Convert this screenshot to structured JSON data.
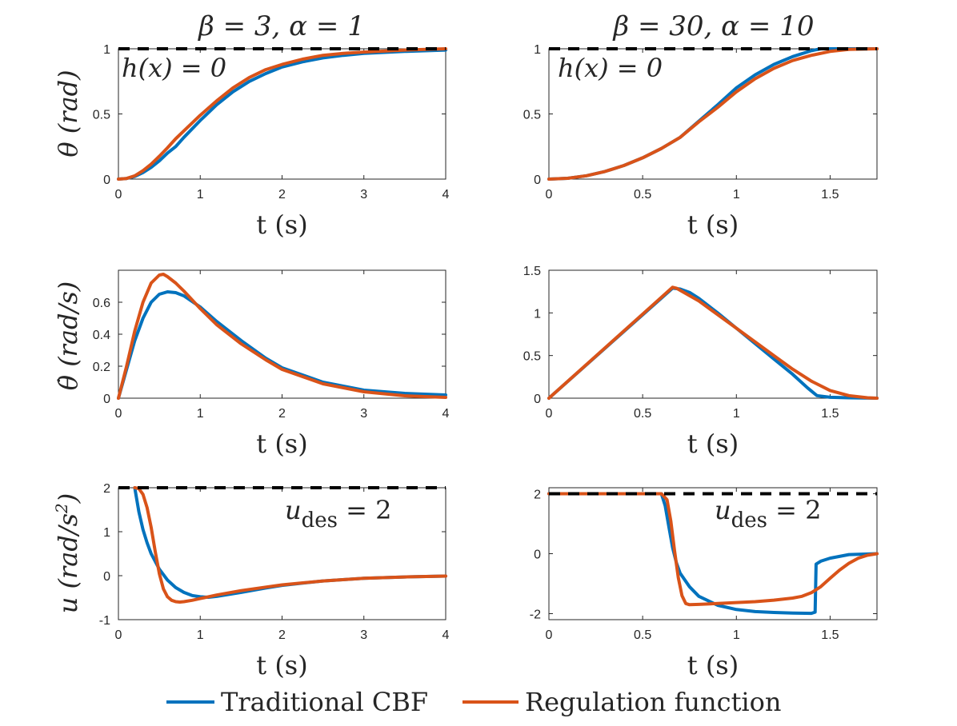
{
  "colors": {
    "traditional": "#0072BD",
    "regulation": "#D95319",
    "bound": "#000000",
    "axis": "#262626"
  },
  "columns": {
    "left": {
      "title_parts": [
        "β = 3, ",
        "α = 1"
      ]
    },
    "right": {
      "title_parts": [
        "β = 30, ",
        "α = 10"
      ]
    }
  },
  "rows": {
    "theta": {
      "ylabel": "θ (rad)"
    },
    "thetadot": {
      "ylabel": "θ̇ (rad/s)"
    },
    "u": {
      "ylabel_main": "u (rad/s",
      "ylabel_sup": "2",
      "ylabel_close": ")"
    }
  },
  "xlabel": "t (s)",
  "annotations": {
    "h_main": "h(x) = 0",
    "u_base": "u",
    "u_sub": "des",
    "u_value": " = 2"
  },
  "legend": {
    "traditional": "Traditional CBF",
    "regulation": "Regulation function"
  },
  "chart_data": [
    {
      "id": "theta-left",
      "type": "line",
      "xlim": [
        0,
        4
      ],
      "ylim": [
        0,
        1
      ],
      "xticks": [
        "0",
        "1",
        "2",
        "3",
        "4"
      ],
      "xtick_values": [
        0,
        1,
        2,
        3,
        4
      ],
      "yticks": [
        "0",
        "0.5",
        "1"
      ],
      "ytick_values": [
        0,
        0.5,
        1
      ],
      "xlabel": "t (s)",
      "ylabel": "θ (rad)",
      "title": "β = 3, α = 1",
      "reference_line": {
        "y": 1,
        "label": "h(x) = 0"
      },
      "series": [
        {
          "name": "Traditional CBF",
          "x": [
            0,
            0.1,
            0.2,
            0.3,
            0.4,
            0.5,
            0.6,
            0.7,
            0.8,
            1.0,
            1.2,
            1.4,
            1.6,
            1.8,
            2.0,
            2.25,
            2.5,
            2.75,
            3.0,
            3.5,
            4.0
          ],
          "y": [
            0,
            0.005,
            0.02,
            0.05,
            0.09,
            0.14,
            0.2,
            0.25,
            0.32,
            0.45,
            0.57,
            0.67,
            0.75,
            0.81,
            0.86,
            0.9,
            0.93,
            0.95,
            0.965,
            0.98,
            0.99
          ]
        },
        {
          "name": "Regulation function",
          "x": [
            0,
            0.1,
            0.2,
            0.3,
            0.4,
            0.5,
            0.6,
            0.7,
            0.8,
            1.0,
            1.2,
            1.4,
            1.6,
            1.8,
            2.0,
            2.25,
            2.5,
            2.75,
            3.0,
            3.5,
            4.0
          ],
          "y": [
            0,
            0.005,
            0.025,
            0.065,
            0.115,
            0.175,
            0.24,
            0.31,
            0.37,
            0.49,
            0.6,
            0.7,
            0.78,
            0.84,
            0.88,
            0.92,
            0.95,
            0.965,
            0.975,
            0.99,
            1.0
          ]
        }
      ]
    },
    {
      "id": "theta-right",
      "type": "line",
      "xlim": [
        0,
        1.75
      ],
      "ylim": [
        0,
        1
      ],
      "xticks": [
        "0",
        "0.5",
        "1",
        "1.5"
      ],
      "xtick_values": [
        0,
        0.5,
        1,
        1.5
      ],
      "yticks": [
        "0",
        "0.5",
        "1"
      ],
      "ytick_values": [
        0,
        0.5,
        1
      ],
      "xlabel": "t (s)",
      "ylabel": "θ (rad)",
      "title": "β = 30, α = 10",
      "reference_line": {
        "y": 1,
        "label": "h(x) = 0"
      },
      "series": [
        {
          "name": "Traditional CBF",
          "x": [
            0,
            0.1,
            0.2,
            0.3,
            0.4,
            0.5,
            0.6,
            0.7,
            0.8,
            0.9,
            1.0,
            1.1,
            1.2,
            1.3,
            1.4,
            1.45,
            1.5,
            1.6,
            1.75
          ],
          "y": [
            0,
            0.006,
            0.026,
            0.059,
            0.104,
            0.163,
            0.235,
            0.32,
            0.445,
            0.57,
            0.7,
            0.8,
            0.88,
            0.94,
            0.985,
            1.0,
            1.0,
            1.0,
            1.0
          ]
        },
        {
          "name": "Regulation function",
          "x": [
            0,
            0.1,
            0.2,
            0.3,
            0.4,
            0.5,
            0.6,
            0.7,
            0.8,
            0.9,
            1.0,
            1.1,
            1.2,
            1.3,
            1.4,
            1.5,
            1.6,
            1.75
          ],
          "y": [
            0,
            0.006,
            0.026,
            0.059,
            0.104,
            0.163,
            0.235,
            0.32,
            0.44,
            0.55,
            0.67,
            0.77,
            0.85,
            0.91,
            0.95,
            0.98,
            0.995,
            1.0
          ]
        }
      ]
    },
    {
      "id": "thetadot-left",
      "type": "line",
      "xlim": [
        0,
        4
      ],
      "ylim": [
        0,
        0.8
      ],
      "xticks": [
        "0",
        "1",
        "2",
        "3",
        "4"
      ],
      "xtick_values": [
        0,
        1,
        2,
        3,
        4
      ],
      "yticks": [
        "0",
        "0.2",
        "0.4",
        "0.6"
      ],
      "ytick_values": [
        0,
        0.2,
        0.4,
        0.6
      ],
      "xlabel": "t (s)",
      "ylabel": "θ̇ (rad/s)",
      "series": [
        {
          "name": "Traditional CBF",
          "x": [
            0,
            0.1,
            0.2,
            0.3,
            0.4,
            0.5,
            0.6,
            0.7,
            0.8,
            1.0,
            1.2,
            1.5,
            1.8,
            2.0,
            2.5,
            3.0,
            3.5,
            4.0
          ],
          "y": [
            0,
            0.18,
            0.36,
            0.5,
            0.6,
            0.65,
            0.665,
            0.66,
            0.64,
            0.57,
            0.48,
            0.36,
            0.25,
            0.19,
            0.1,
            0.05,
            0.03,
            0.02
          ]
        },
        {
          "name": "Regulation function",
          "x": [
            0,
            0.1,
            0.2,
            0.3,
            0.4,
            0.5,
            0.55,
            0.6,
            0.7,
            0.8,
            1.0,
            1.2,
            1.5,
            1.8,
            2.0,
            2.5,
            3.0,
            3.5,
            4.0
          ],
          "y": [
            0,
            0.2,
            0.42,
            0.6,
            0.72,
            0.77,
            0.775,
            0.76,
            0.72,
            0.67,
            0.56,
            0.46,
            0.34,
            0.24,
            0.18,
            0.09,
            0.04,
            0.015,
            0.005
          ]
        }
      ]
    },
    {
      "id": "thetadot-right",
      "type": "line",
      "xlim": [
        0,
        1.75
      ],
      "ylim": [
        0,
        1.5
      ],
      "xticks": [
        "0",
        "0.5",
        "1",
        "1.5"
      ],
      "xtick_values": [
        0,
        0.5,
        1,
        1.5
      ],
      "yticks": [
        "0",
        "0.5",
        "1",
        "1.5"
      ],
      "ytick_values": [
        0,
        0.5,
        1,
        1.5
      ],
      "xlabel": "t (s)",
      "ylabel": "θ̇ (rad/s)",
      "series": [
        {
          "name": "Traditional CBF",
          "x": [
            0,
            0.66,
            0.7,
            0.75,
            0.8,
            0.9,
            1.0,
            1.1,
            1.2,
            1.3,
            1.38,
            1.43,
            1.5,
            1.6,
            1.75
          ],
          "y": [
            0,
            1.29,
            1.28,
            1.24,
            1.17,
            1.0,
            0.82,
            0.64,
            0.46,
            0.28,
            0.12,
            0.03,
            0.01,
            0.005,
            0
          ]
        },
        {
          "name": "Regulation function",
          "x": [
            0,
            0.66,
            0.68,
            0.72,
            0.8,
            0.9,
            1.0,
            1.1,
            1.2,
            1.3,
            1.4,
            1.5,
            1.6,
            1.7,
            1.75
          ],
          "y": [
            0,
            1.3,
            1.29,
            1.24,
            1.14,
            0.98,
            0.82,
            0.66,
            0.5,
            0.34,
            0.2,
            0.09,
            0.03,
            0.005,
            0
          ]
        }
      ]
    },
    {
      "id": "u-left",
      "type": "line",
      "xlim": [
        0,
        4
      ],
      "ylim": [
        -1,
        2
      ],
      "xticks": [
        "0",
        "1",
        "2",
        "3",
        "4"
      ],
      "xtick_values": [
        0,
        1,
        2,
        3,
        4
      ],
      "yticks": [
        "-1",
        "0",
        "1",
        "2"
      ],
      "ytick_values": [
        -1,
        0,
        1,
        2
      ],
      "xlabel": "t (s)",
      "ylabel": "u (rad/s^2)",
      "reference_line": {
        "y": 2,
        "label": "u_des = 2"
      },
      "series": [
        {
          "name": "Traditional CBF",
          "x": [
            0.2,
            0.25,
            0.3,
            0.35,
            0.4,
            0.5,
            0.6,
            0.7,
            0.8,
            0.9,
            1.0,
            1.1,
            1.2,
            1.5,
            1.8,
            2.0,
            2.5,
            3.0,
            3.5,
            4.0
          ],
          "y": [
            2,
            1.45,
            1.05,
            0.75,
            0.5,
            0.15,
            -0.1,
            -0.27,
            -0.38,
            -0.45,
            -0.48,
            -0.49,
            -0.47,
            -0.38,
            -0.28,
            -0.22,
            -0.12,
            -0.06,
            -0.03,
            -0.01
          ]
        },
        {
          "name": "Regulation function",
          "x": [
            0.2,
            0.25,
            0.3,
            0.35,
            0.4,
            0.45,
            0.5,
            0.55,
            0.6,
            0.65,
            0.7,
            0.75,
            0.8,
            0.9,
            1.0,
            1.2,
            1.5,
            1.8,
            2.0,
            2.5,
            3.0,
            3.5,
            4.0
          ],
          "y": [
            2,
            1.98,
            1.85,
            1.55,
            1.1,
            0.55,
            0.05,
            -0.3,
            -0.48,
            -0.56,
            -0.59,
            -0.6,
            -0.59,
            -0.56,
            -0.52,
            -0.44,
            -0.34,
            -0.26,
            -0.21,
            -0.12,
            -0.06,
            -0.03,
            -0.01
          ]
        }
      ]
    },
    {
      "id": "u-right",
      "type": "line",
      "xlim": [
        0,
        1.75
      ],
      "ylim": [
        -2.2,
        2.2
      ],
      "xticks": [
        "0",
        "0.5",
        "1",
        "1.5"
      ],
      "xtick_values": [
        0,
        0.5,
        1,
        1.5
      ],
      "yticks": [
        "-2",
        "0",
        "2"
      ],
      "ytick_values": [
        -2,
        0,
        2
      ],
      "xlabel": "t (s)",
      "ylabel": "u (rad/s^2)",
      "reference_line": {
        "y": 2,
        "label": "u_des = 2"
      },
      "series": [
        {
          "name": "Traditional CBF",
          "x": [
            0,
            0.6,
            0.62,
            0.64,
            0.66,
            0.68,
            0.7,
            0.75,
            0.8,
            0.9,
            1.0,
            1.1,
            1.2,
            1.3,
            1.4,
            1.42,
            1.425,
            1.45,
            1.5,
            1.6,
            1.75
          ],
          "y": [
            2,
            2,
            1.6,
            0.9,
            0.2,
            -0.3,
            -0.65,
            -1.1,
            -1.42,
            -1.72,
            -1.86,
            -1.93,
            -1.96,
            -1.98,
            -1.99,
            -1.95,
            -0.35,
            -0.25,
            -0.15,
            -0.03,
            0
          ]
        },
        {
          "name": "Regulation function",
          "x": [
            0,
            0.6,
            0.63,
            0.65,
            0.67,
            0.69,
            0.71,
            0.73,
            0.75,
            0.8,
            0.9,
            1.0,
            1.1,
            1.2,
            1.3,
            1.35,
            1.4,
            1.45,
            1.5,
            1.55,
            1.6,
            1.65,
            1.7,
            1.75
          ],
          "y": [
            2,
            2,
            1.8,
            1.1,
            0.1,
            -0.8,
            -1.4,
            -1.66,
            -1.7,
            -1.69,
            -1.66,
            -1.63,
            -1.6,
            -1.55,
            -1.48,
            -1.42,
            -1.3,
            -1.1,
            -0.82,
            -0.55,
            -0.32,
            -0.15,
            -0.05,
            0
          ]
        }
      ]
    }
  ]
}
